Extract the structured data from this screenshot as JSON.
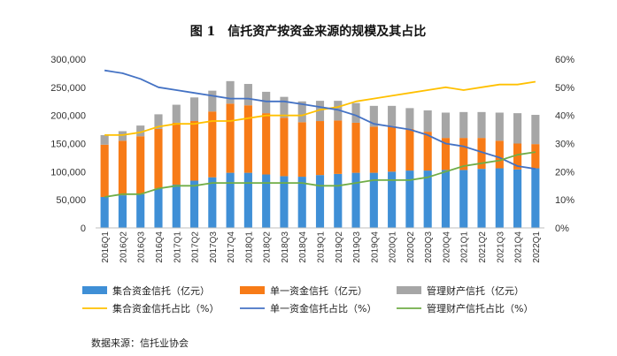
{
  "chart_data": {
    "type": "bar",
    "stacked": true,
    "title": "图 1　信托资产按资金来源的规模及其占比",
    "categories": [
      "2016Q1",
      "2016Q2",
      "2016Q3",
      "2016Q4",
      "2017Q1",
      "2017Q2",
      "2017Q3",
      "2017Q4",
      "2018Q1",
      "2018Q2",
      "2018Q3",
      "2018Q4",
      "2019Q1",
      "2019Q2",
      "2019Q3",
      "2019Q4",
      "2020Q1",
      "2020Q2",
      "2020Q3",
      "2020Q4",
      "2021Q1",
      "2021Q2",
      "2021Q3",
      "2021Q4",
      "2022Q1"
    ],
    "series": [
      {
        "name": "集合资金信托（亿元）",
        "kind": "bar",
        "color": "#3f8fd6",
        "values": [
          55000,
          58000,
          60000,
          70000,
          77000,
          84000,
          90000,
          98000,
          98000,
          95000,
          92000,
          91000,
          94000,
          96000,
          98000,
          98000,
          100000,
          102000,
          102000,
          103000,
          103000,
          105000,
          106000,
          104000,
          106000
        ]
      },
      {
        "name": "单一资金信托（亿元）",
        "kind": "bar",
        "color": "#f77b17",
        "values": [
          93000,
          97000,
          103000,
          106000,
          110000,
          106000,
          117000,
          123000,
          120000,
          109000,
          104000,
          97000,
          96000,
          95000,
          89000,
          82000,
          81000,
          74000,
          69000,
          57000,
          57000,
          55000,
          49000,
          46000,
          43000
        ]
      },
      {
        "name": "管理财产信托（亿元）",
        "kind": "bar",
        "color": "#a6a6a6",
        "values": [
          17000,
          17000,
          19000,
          26000,
          32000,
          42000,
          37000,
          40000,
          38000,
          38000,
          37000,
          37000,
          36000,
          35000,
          35000,
          37000,
          36000,
          37000,
          38000,
          45000,
          46000,
          46000,
          50000,
          54000,
          52000
        ]
      },
      {
        "name": "集合资金信托占比（%）",
        "kind": "line",
        "axis": "right",
        "color": "#ffc000",
        "values": [
          33,
          33,
          34,
          36,
          37,
          37,
          38,
          38,
          39,
          40,
          40,
          40,
          42,
          43,
          45,
          46,
          47,
          48,
          49,
          50,
          49,
          50,
          51,
          51,
          52
        ]
      },
      {
        "name": "单一资金信托占比（%）",
        "kind": "line",
        "axis": "right",
        "color": "#4472c4",
        "values": [
          56,
          55,
          53,
          50,
          49,
          48,
          47,
          46,
          46,
          45,
          45,
          44,
          43,
          42,
          40,
          37,
          36,
          35,
          33,
          30,
          29,
          27,
          25,
          22,
          21
        ]
      },
      {
        "name": "管理财产信托占比（%）",
        "kind": "line",
        "axis": "right",
        "color": "#70ad47",
        "values": [
          11,
          12,
          12,
          14,
          15,
          15,
          16,
          16,
          16,
          16,
          16,
          16,
          15,
          15,
          16,
          17,
          17,
          17,
          18,
          20,
          22,
          23,
          24,
          26,
          27
        ]
      }
    ],
    "yleft_ticks": [
      "0",
      "50,000",
      "100,000",
      "150,000",
      "200,000",
      "250,000",
      "300,000"
    ],
    "yright_ticks": [
      "0%",
      "10%",
      "20%",
      "30%",
      "40%",
      "50%",
      "60%"
    ],
    "ylim_left": [
      0,
      300000
    ],
    "ylim_right": [
      0,
      60
    ],
    "legend_position": "bottom",
    "source": "数据来源：信托业协会"
  }
}
